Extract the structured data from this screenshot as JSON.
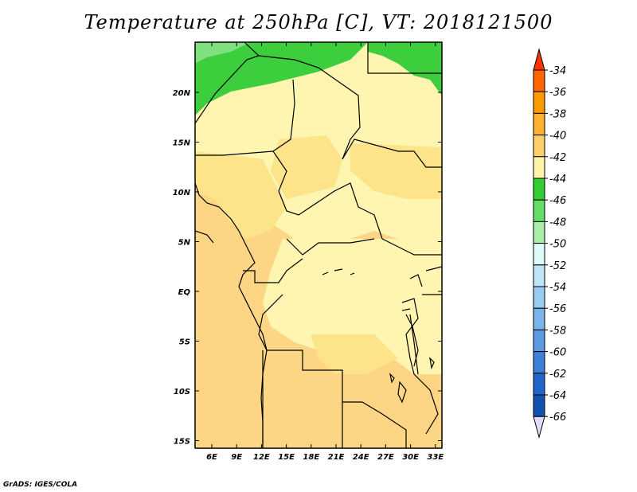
{
  "map": {
    "title": "Temperature at 250hPa [C], VT: 2018121500",
    "x_ticks": [
      "6E",
      "9E",
      "12E",
      "15E",
      "18E",
      "21E",
      "24E",
      "27E",
      "30E",
      "33E"
    ],
    "y_ticks": [
      "20N",
      "15N",
      "10N",
      "5N",
      "EQ",
      "5S",
      "10S",
      "15S"
    ],
    "colorbar_labels": [
      "-34",
      "-36",
      "-38",
      "-40",
      "-42",
      "-44",
      "-46",
      "-48",
      "-50",
      "-52",
      "-54",
      "-56",
      "-58",
      "-60",
      "-62",
      "-64",
      "-66"
    ],
    "colorbar_colors": [
      "#ff6600",
      "#ff9900",
      "#ffb030",
      "#ffd06a",
      "#fef3a8",
      "#33cc33",
      "#66dd66",
      "#aaeeaa",
      "#dffafa",
      "#bfe4f8",
      "#99ccf0",
      "#7ab4ec",
      "#5c9ae4",
      "#3d80dc",
      "#2166cc",
      "#1450b0",
      "#0f1a78"
    ],
    "top_arrow_color": "#ff3300",
    "bottom_arrow_color": "#e2dcfa",
    "field_colors": {
      "light_yellow": "#fef5b0",
      "yellow": "#fde38a",
      "orange": "#fcd685",
      "green": "#3cce3c",
      "light_green": "#7ee07e"
    },
    "credit": "GrADS: IGES/COLA"
  }
}
